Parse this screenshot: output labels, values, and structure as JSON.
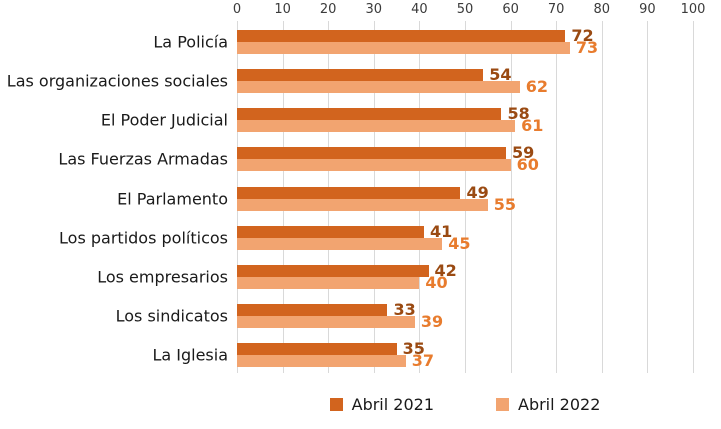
{
  "chart_data": {
    "type": "bar",
    "orientation": "horizontal",
    "title": "",
    "xlabel": "",
    "ylabel": "",
    "xlim": [
      0,
      100
    ],
    "x_ticks": [
      0,
      10,
      20,
      30,
      40,
      50,
      60,
      70,
      80,
      90,
      100
    ],
    "grid": true,
    "gridline_color": "#d9d9d9",
    "tick_label_color": "#3b3b3b",
    "category_label_color": "#1a1a1a",
    "legend_position": "bottom-center",
    "categories": [
      "La Policía",
      "Las organizaciones sociales",
      "El Poder Judicial",
      "Las Fuerzas Armadas",
      "El Parlamento",
      "Los partidos políticos",
      "Los empresarios",
      "Los sindicatos",
      "La Iglesia"
    ],
    "series": [
      {
        "name": "Abril 2021",
        "values": [
          72,
          54,
          58,
          59,
          49,
          41,
          42,
          33,
          35
        ],
        "bar_color": "#d2641e",
        "label_color": "#9a4a12"
      },
      {
        "name": "Abril 2022",
        "values": [
          73,
          62,
          61,
          60,
          55,
          45,
          40,
          39,
          37
        ],
        "bar_color": "#f2a470",
        "label_color": "#e87c2e"
      }
    ]
  }
}
